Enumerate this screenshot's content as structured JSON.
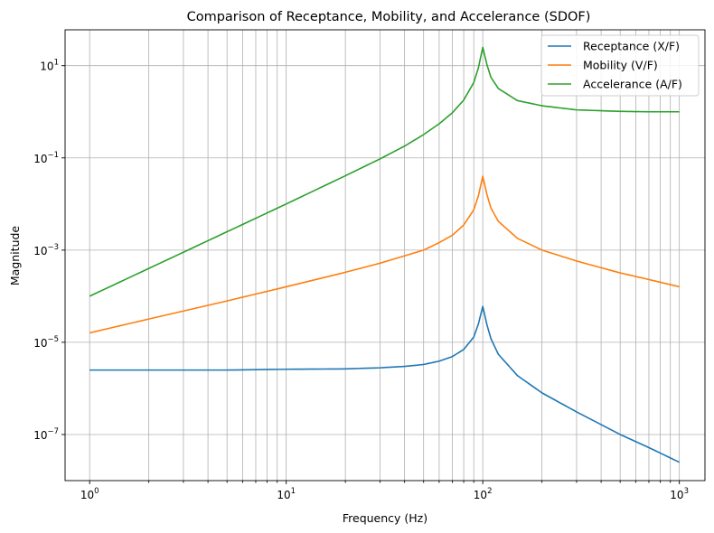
{
  "chart_data": {
    "type": "line",
    "title": "Comparison of Receptance, Mobility, and Accelerance (SDOF)",
    "xlabel": "Frequency (Hz)",
    "ylabel": "Magnitude",
    "xscale": "log",
    "yscale": "log",
    "xlim": [
      0.75,
      1350
    ],
    "ylim": [
      1e-08,
      60
    ],
    "grid": "on (major and minor)",
    "legend_position": "top-right",
    "x_ticks": [
      {
        "value": 1,
        "base": "10",
        "exp": "0"
      },
      {
        "value": 10,
        "base": "10",
        "exp": "1"
      },
      {
        "value": 100,
        "base": "10",
        "exp": "2"
      },
      {
        "value": 1000,
        "base": "10",
        "exp": "3"
      }
    ],
    "y_ticks": [
      {
        "value": 1e-07,
        "base": "10",
        "exp": "−7"
      },
      {
        "value": 1e-05,
        "base": "10",
        "exp": "−5"
      },
      {
        "value": 0.001,
        "base": "10",
        "exp": "−3"
      },
      {
        "value": 0.1,
        "base": "10",
        "exp": "−1"
      },
      {
        "value": 10,
        "base": "10",
        "exp": "1"
      }
    ],
    "series": [
      {
        "name": "Receptance (X/F)",
        "color": "#1f77b4",
        "points": [
          [
            1,
            2.5e-06
          ],
          [
            2,
            2.5e-06
          ],
          [
            5,
            2.5e-06
          ],
          [
            10,
            2.6e-06
          ],
          [
            20,
            2.65e-06
          ],
          [
            30,
            2.8e-06
          ],
          [
            40,
            3e-06
          ],
          [
            50,
            3.3e-06
          ],
          [
            60,
            3.9e-06
          ],
          [
            70,
            4.9e-06
          ],
          [
            80,
            7e-06
          ],
          [
            90,
            1.3e-05
          ],
          [
            95,
            2.5e-05
          ],
          [
            100,
            6e-05
          ],
          [
            105,
            2.4e-05
          ],
          [
            110,
            1.2e-05
          ],
          [
            120,
            5.5e-06
          ],
          [
            150,
            1.9e-06
          ],
          [
            200,
            8e-07
          ],
          [
            300,
            3.1e-07
          ],
          [
            500,
            1e-07
          ],
          [
            700,
            5.2e-08
          ],
          [
            1000,
            2.5e-08
          ]
        ]
      },
      {
        "name": "Mobility (V/F)",
        "color": "#ff7f0e",
        "points": [
          [
            1,
            1.6e-05
          ],
          [
            2,
            3.2e-05
          ],
          [
            5,
            7.9e-05
          ],
          [
            10,
            0.00016
          ],
          [
            20,
            0.00033
          ],
          [
            30,
            0.00052
          ],
          [
            40,
            0.00075
          ],
          [
            50,
            0.001
          ],
          [
            60,
            0.00145
          ],
          [
            70,
            0.0021
          ],
          [
            80,
            0.0035
          ],
          [
            90,
            0.0075
          ],
          [
            95,
            0.015
          ],
          [
            100,
            0.04
          ],
          [
            105,
            0.016
          ],
          [
            110,
            0.0082
          ],
          [
            120,
            0.0042
          ],
          [
            150,
            0.0018
          ],
          [
            200,
            0.001
          ],
          [
            300,
            0.00058
          ],
          [
            500,
            0.00032
          ],
          [
            700,
            0.00023
          ],
          [
            1000,
            0.00016
          ]
        ]
      },
      {
        "name": "Accelerance (A/F)",
        "color": "#2ca02c",
        "points": [
          [
            1,
            0.0001
          ],
          [
            2,
            0.0004
          ],
          [
            5,
            0.0025
          ],
          [
            10,
            0.01
          ],
          [
            20,
            0.041
          ],
          [
            30,
            0.095
          ],
          [
            40,
            0.18
          ],
          [
            50,
            0.32
          ],
          [
            60,
            0.55
          ],
          [
            70,
            0.95
          ],
          [
            80,
            1.8
          ],
          [
            90,
            4.3
          ],
          [
            95,
            9.0
          ],
          [
            100,
            25
          ],
          [
            105,
            10.5
          ],
          [
            110,
            5.6
          ],
          [
            120,
            3.2
          ],
          [
            150,
            1.75
          ],
          [
            200,
            1.35
          ],
          [
            300,
            1.1
          ],
          [
            500,
            1.02
          ],
          [
            700,
            1.0
          ],
          [
            1000,
            1.0
          ]
        ]
      }
    ]
  }
}
